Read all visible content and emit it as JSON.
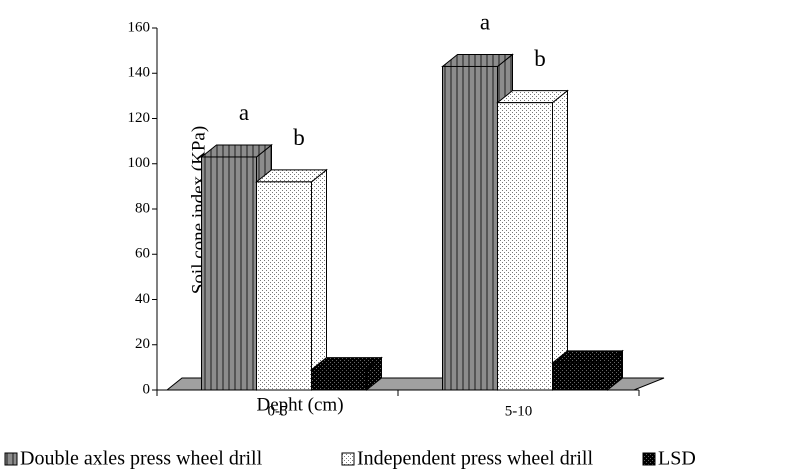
{
  "chart_data": {
    "type": "bar3d",
    "x_label": "Depht (cm)",
    "y_label": "Soil cone index (KPa)",
    "categories": [
      "0-5",
      "5-10"
    ],
    "series": [
      {
        "name": "Double axles press wheel drill",
        "color": "#808080",
        "values": [
          103,
          143
        ],
        "labels": [
          "a",
          "a"
        ]
      },
      {
        "name": "Independent press wheel drill",
        "color": "#ffffff",
        "values": [
          92,
          127
        ],
        "labels": [
          "b",
          "b"
        ]
      },
      {
        "name": "LSD",
        "color": "#000000",
        "values": [
          9,
          12
        ]
      }
    ],
    "ylim": [
      0,
      160
    ],
    "yticks": [
      0,
      20,
      40,
      60,
      80,
      100,
      120,
      140,
      160
    ]
  }
}
